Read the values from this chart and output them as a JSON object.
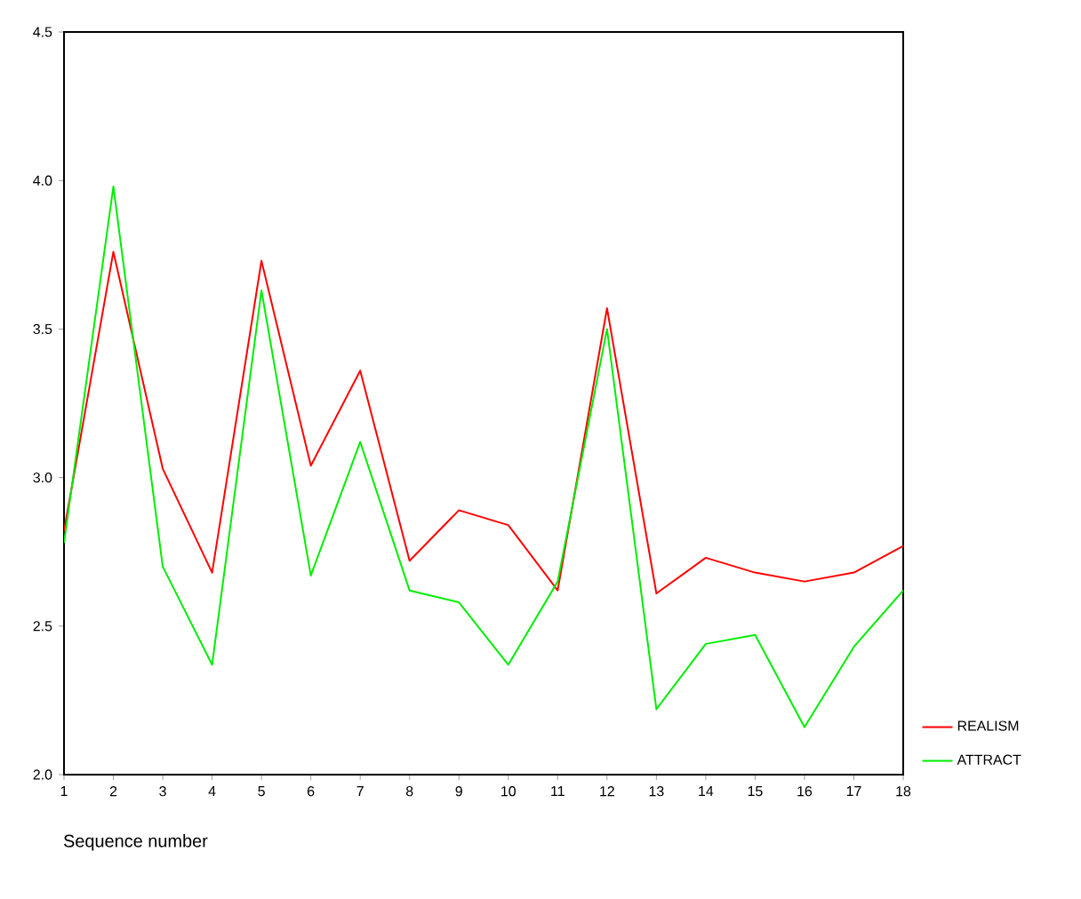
{
  "chart_data": {
    "type": "line",
    "xlabel": "Sequence number",
    "x": [
      1,
      2,
      3,
      4,
      5,
      6,
      7,
      8,
      9,
      10,
      11,
      12,
      13,
      14,
      15,
      16,
      17,
      18
    ],
    "xlim": [
      1,
      18
    ],
    "xticks": [
      1,
      2,
      3,
      4,
      5,
      6,
      7,
      8,
      9,
      10,
      11,
      12,
      13,
      14,
      15,
      16,
      17,
      18
    ],
    "ylim": [
      2.0,
      4.5
    ],
    "yticks": [
      {
        "value": 2.0,
        "label": "2.0"
      },
      {
        "value": 2.5,
        "label": "2.5"
      },
      {
        "value": 3.0,
        "label": "3.0"
      },
      {
        "value": 3.5,
        "label": "3.5"
      },
      {
        "value": 4.0,
        "label": "4.0"
      },
      {
        "value": 4.5,
        "label": "4.5"
      }
    ],
    "series": [
      {
        "name": "REALISM",
        "color": "#ff0000",
        "values": [
          2.82,
          3.76,
          3.03,
          2.68,
          3.73,
          3.04,
          3.36,
          2.72,
          2.89,
          2.84,
          2.62,
          3.57,
          2.61,
          2.73,
          2.68,
          2.65,
          2.68,
          2.77
        ]
      },
      {
        "name": "ATTRACT",
        "color": "#00ee00",
        "values": [
          2.78,
          3.98,
          2.7,
          2.37,
          3.63,
          2.67,
          3.12,
          2.62,
          2.58,
          2.37,
          2.65,
          3.5,
          2.22,
          2.44,
          2.47,
          2.16,
          2.43,
          2.62
        ]
      }
    ],
    "legend": "right",
    "marker": "none",
    "line_style": "solid"
  }
}
